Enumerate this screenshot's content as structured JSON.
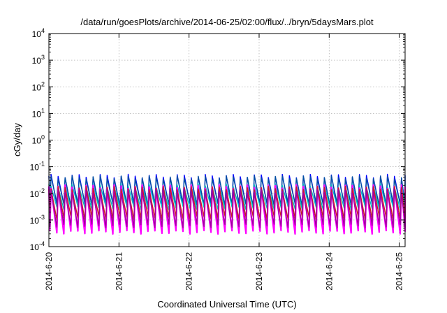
{
  "chart_data": {
    "type": "line",
    "title": "/data/run/goesPlots/archive/2014-06-25/02:00/flux/../bryn/5daysMars.plot",
    "xlabel": "Coordinated Universal Time (UTC)",
    "ylabel": "cGy/day",
    "y_scale": "log",
    "ylim": [
      0.0001,
      10000
    ],
    "y_ticks": [
      {
        "base": "10",
        "exp": "-4",
        "value": 0.0001
      },
      {
        "base": "10",
        "exp": "-3",
        "value": 0.001
      },
      {
        "base": "10",
        "exp": "-2",
        "value": 0.01
      },
      {
        "base": "10",
        "exp": "-1",
        "value": 0.1
      },
      {
        "base": "10",
        "exp": "0",
        "value": 1
      },
      {
        "base": "10",
        "exp": "1",
        "value": 10
      },
      {
        "base": "10",
        "exp": "2",
        "value": 100
      },
      {
        "base": "10",
        "exp": "3",
        "value": 1000
      },
      {
        "base": "10",
        "exp": "4",
        "value": 10000
      }
    ],
    "xlim": [
      "2014-06-20 00:00",
      "2014-06-25 02:00"
    ],
    "x_ticks": [
      "2014-6-20",
      "2014-6-21",
      "2014-6-22",
      "2014-6-23",
      "2014-6-24",
      "2014-6-25"
    ],
    "grid": true,
    "pattern": {
      "shape": "sawtooth",
      "cycles_per_day": 10,
      "peak_hour_first": "2014-06-20 00:45"
    },
    "series": [
      {
        "color": "#0000ff",
        "peak": 0.045,
        "trough": 0.0035
      },
      {
        "color": "#0050a0",
        "peak": 0.04,
        "trough": 0.004
      },
      {
        "color": "#00c0c0",
        "peak": 0.02,
        "trough": 0.0028
      },
      {
        "color": "#ff00ff",
        "peak": 0.018,
        "trough": 0.00035
      },
      {
        "color": "#cc2020",
        "peak": 0.016,
        "trough": 0.0012
      },
      {
        "color": "#a000a0",
        "peak": 0.012,
        "trough": 0.0006
      }
    ]
  }
}
